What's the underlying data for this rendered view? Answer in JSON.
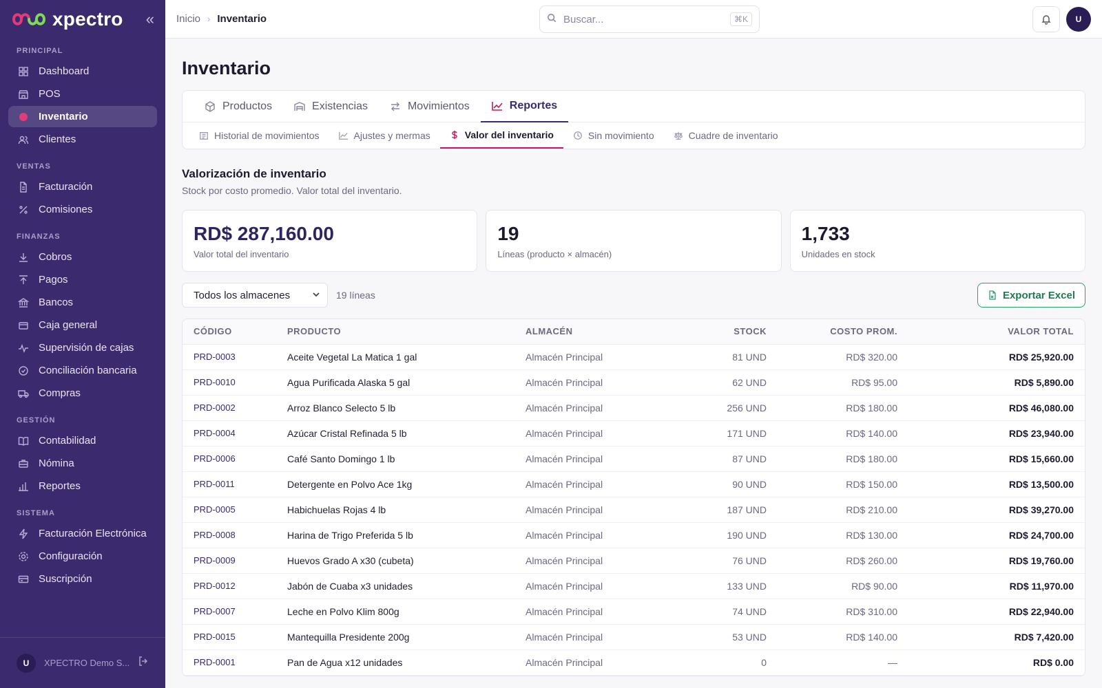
{
  "brand": {
    "name": "xpectro"
  },
  "sidebar": {
    "sections": [
      {
        "title": "PRINCIPAL",
        "items": [
          {
            "label": "Dashboard",
            "icon": "grid-icon"
          },
          {
            "label": "POS",
            "icon": "store-icon"
          },
          {
            "label": "Inventario",
            "icon": "box-icon",
            "active": true
          },
          {
            "label": "Clientes",
            "icon": "users-icon"
          }
        ]
      },
      {
        "title": "VENTAS",
        "items": [
          {
            "label": "Facturación",
            "icon": "file-icon"
          },
          {
            "label": "Comisiones",
            "icon": "percent-icon"
          }
        ]
      },
      {
        "title": "FINANZAS",
        "items": [
          {
            "label": "Cobros",
            "icon": "arrow-down-icon"
          },
          {
            "label": "Pagos",
            "icon": "arrow-up-icon"
          },
          {
            "label": "Bancos",
            "icon": "bank-icon"
          },
          {
            "label": "Caja general",
            "icon": "wallet-icon"
          },
          {
            "label": "Supervisión de cajas",
            "icon": "activity-icon"
          },
          {
            "label": "Conciliación bancaria",
            "icon": "check-circle-icon"
          },
          {
            "label": "Compras",
            "icon": "truck-icon"
          }
        ]
      },
      {
        "title": "GESTIÓN",
        "items": [
          {
            "label": "Contabilidad",
            "icon": "book-icon"
          },
          {
            "label": "Nómina",
            "icon": "briefcase-icon"
          },
          {
            "label": "Reportes",
            "icon": "bar-chart-icon"
          }
        ]
      },
      {
        "title": "SISTEMA",
        "items": [
          {
            "label": "Facturación Electrónica",
            "icon": "zap-icon"
          },
          {
            "label": "Configuración",
            "icon": "gear-icon"
          },
          {
            "label": "Suscripción",
            "icon": "card-icon"
          }
        ]
      }
    ],
    "footer": {
      "avatar": "U",
      "name": "XPECTRO Demo S..."
    }
  },
  "topbar": {
    "breadcrumb": {
      "home": "Inicio",
      "current": "Inventario"
    },
    "search": {
      "placeholder": "Buscar...",
      "shortcut": "⌘K"
    },
    "avatar": "U"
  },
  "page": {
    "title": "Inventario",
    "tabs": [
      {
        "label": "Productos",
        "icon": "package-icon"
      },
      {
        "label": "Existencias",
        "icon": "warehouse-icon"
      },
      {
        "label": "Movimientos",
        "icon": "arrows-icon"
      },
      {
        "label": "Reportes",
        "icon": "line-chart-icon",
        "active": true
      }
    ],
    "subtabs": [
      {
        "label": "Historial de movimientos",
        "icon": "history-icon"
      },
      {
        "label": "Ajustes y mermas",
        "icon": "trend-icon"
      },
      {
        "label": "Valor del inventario",
        "icon": "dollar-icon",
        "active": true
      },
      {
        "label": "Sin movimiento",
        "icon": "clock-icon"
      },
      {
        "label": "Cuadre de inventario",
        "icon": "scale-icon"
      }
    ],
    "section": {
      "title": "Valorización de inventario",
      "subtitle": "Stock por costo promedio. Valor total del inventario."
    },
    "stats": [
      {
        "value": "RD$ 287,160.00",
        "label": "Valor total del inventario"
      },
      {
        "value": "19",
        "label": "Líneas (producto × almacén)"
      },
      {
        "value": "1,733",
        "label": "Unidades en stock"
      }
    ],
    "controls": {
      "warehouse_select": "Todos los almacenes",
      "lines_count": "19 líneas",
      "export_label": "Exportar Excel"
    },
    "table": {
      "columns": [
        "CÓDIGO",
        "PRODUCTO",
        "ALMACÉN",
        "STOCK",
        "COSTO PROM.",
        "VALOR TOTAL"
      ],
      "rows": [
        [
          "PRD-0003",
          "Aceite Vegetal La Matica 1 gal",
          "Almacén Principal",
          "81 UND",
          "RD$ 320.00",
          "RD$ 25,920.00"
        ],
        [
          "PRD-0010",
          "Agua Purificada Alaska 5 gal",
          "Almacén Principal",
          "62 UND",
          "RD$ 95.00",
          "RD$ 5,890.00"
        ],
        [
          "PRD-0002",
          "Arroz Blanco Selecto 5 lb",
          "Almacén Principal",
          "256 UND",
          "RD$ 180.00",
          "RD$ 46,080.00"
        ],
        [
          "PRD-0004",
          "Azúcar Cristal Refinada 5 lb",
          "Almacén Principal",
          "171 UND",
          "RD$ 140.00",
          "RD$ 23,940.00"
        ],
        [
          "PRD-0006",
          "Café Santo Domingo 1 lb",
          "Almacén Principal",
          "87 UND",
          "RD$ 180.00",
          "RD$ 15,660.00"
        ],
        [
          "PRD-0011",
          "Detergente en Polvo Ace 1kg",
          "Almacén Principal",
          "90 UND",
          "RD$ 150.00",
          "RD$ 13,500.00"
        ],
        [
          "PRD-0005",
          "Habichuelas Rojas 4 lb",
          "Almacén Principal",
          "187 UND",
          "RD$ 210.00",
          "RD$ 39,270.00"
        ],
        [
          "PRD-0008",
          "Harina de Trigo Preferida 5 lb",
          "Almacén Principal",
          "190 UND",
          "RD$ 130.00",
          "RD$ 24,700.00"
        ],
        [
          "PRD-0009",
          "Huevos Grado A x30 (cubeta)",
          "Almacén Principal",
          "76 UND",
          "RD$ 260.00",
          "RD$ 19,760.00"
        ],
        [
          "PRD-0012",
          "Jabón de Cuaba x3 unidades",
          "Almacén Principal",
          "133 UND",
          "RD$ 90.00",
          "RD$ 11,970.00"
        ],
        [
          "PRD-0007",
          "Leche en Polvo Klim 800g",
          "Almacén Principal",
          "74 UND",
          "RD$ 310.00",
          "RD$ 22,940.00"
        ],
        [
          "PRD-0015",
          "Mantequilla Presidente 200g",
          "Almacén Principal",
          "53 UND",
          "RD$ 140.00",
          "RD$ 7,420.00"
        ],
        [
          "PRD-0001",
          "Pan de Agua x12 unidades",
          "Almacén Principal",
          "0",
          "—",
          "RD$ 0.00"
        ]
      ]
    }
  }
}
